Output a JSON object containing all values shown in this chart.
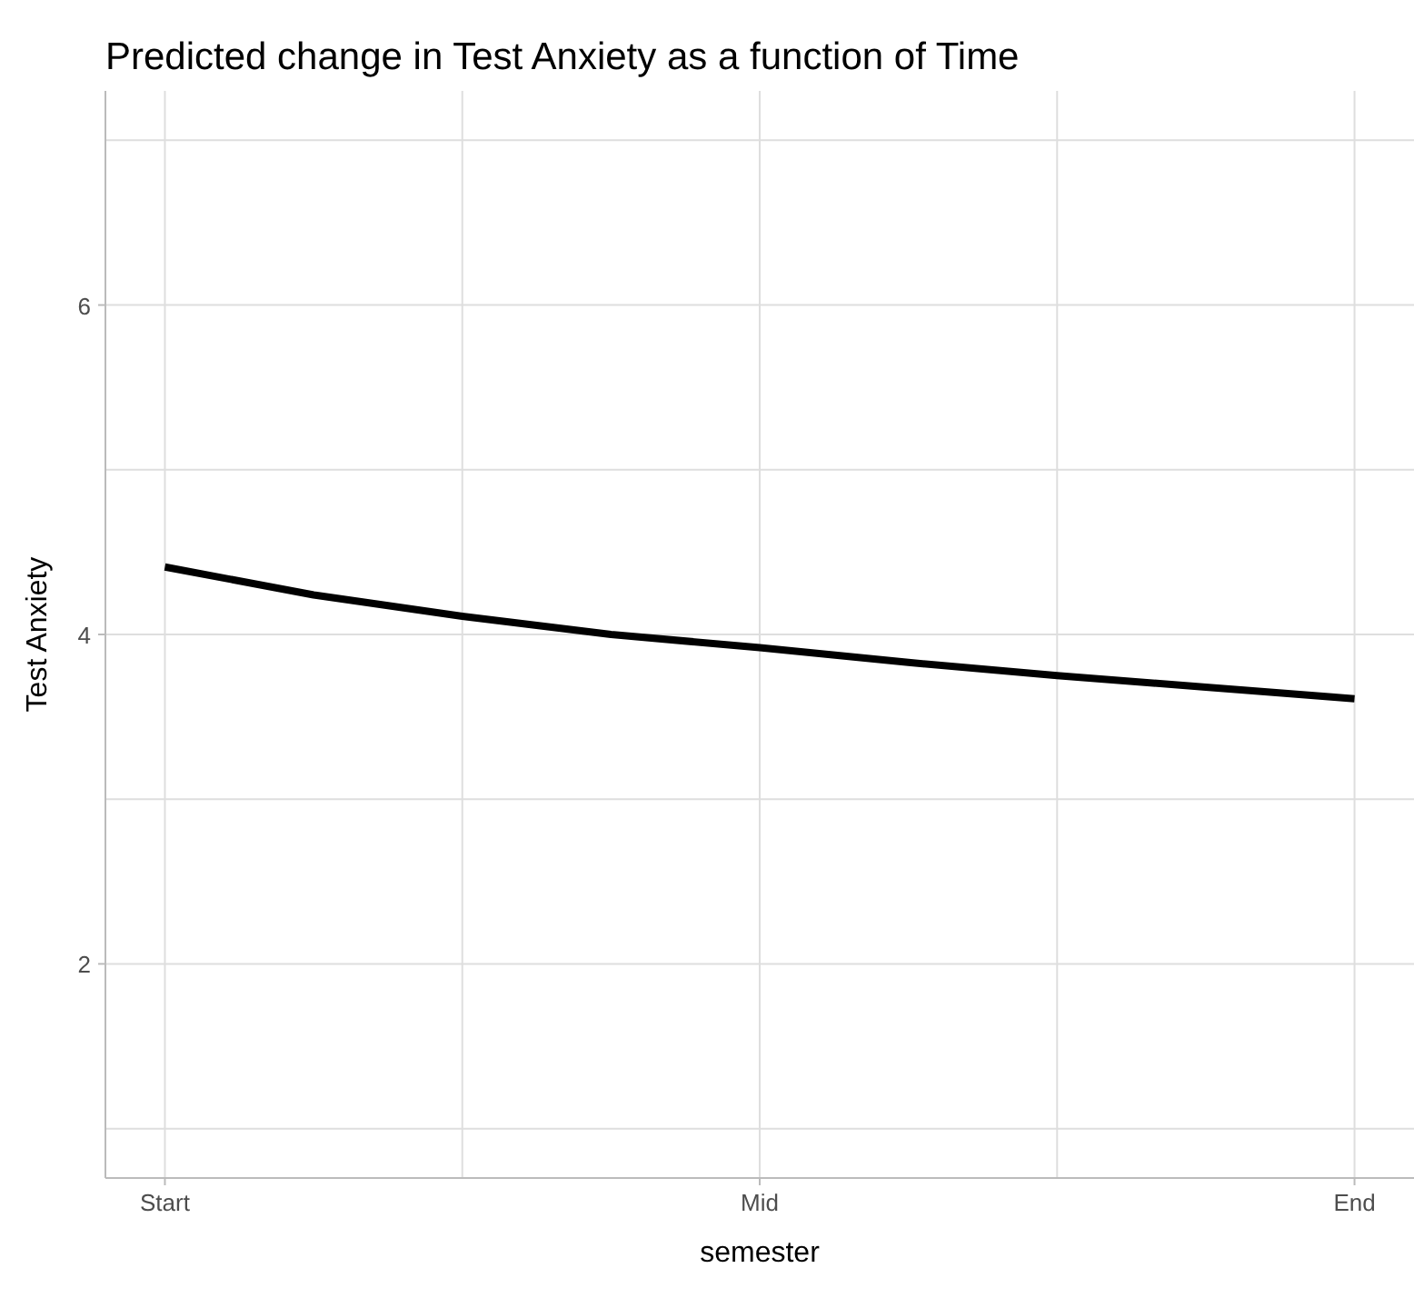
{
  "chart_data": {
    "type": "line",
    "title": "Predicted change in Test Anxiety as a function of Time",
    "xlabel": "semester",
    "ylabel": "Test Anxiety",
    "categories": [
      "Start",
      null,
      null,
      null,
      "Mid",
      null,
      null,
      null,
      "End"
    ],
    "series": [
      {
        "color": "#000000",
        "values": [
          4.41,
          4.24,
          4.11,
          4.0,
          3.92,
          3.83,
          3.75,
          3.68,
          3.61
        ]
      }
    ],
    "ylim": [
      0.7,
      7.3
    ],
    "yticks": [
      {
        "value": 1,
        "label": null
      },
      2,
      {
        "value": 3,
        "label": null
      },
      4,
      {
        "value": 5,
        "label": null
      },
      6,
      {
        "value": 7,
        "label": null
      }
    ],
    "grid": true,
    "marker": "none",
    "line_style": "solid"
  }
}
